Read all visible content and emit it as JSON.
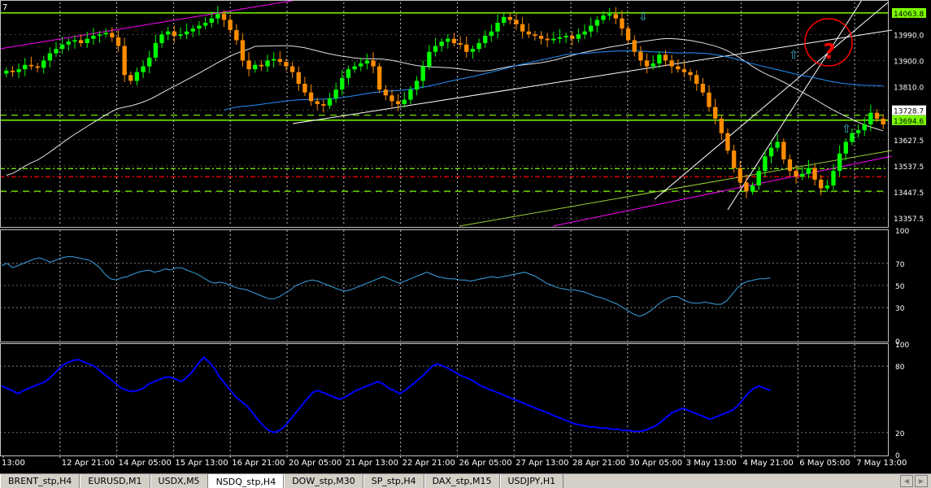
{
  "window": {
    "symbol_tabs": [
      {
        "label": "BRENT_stp,H4"
      },
      {
        "label": "EURUSD,M1"
      },
      {
        "label": "USDX,M5"
      },
      {
        "label": "NSDQ_stp,H4",
        "active": true
      },
      {
        "label": "DOW_stp,M30"
      },
      {
        "label": "SP_stp,H4"
      },
      {
        "label": "DAX_stp,M15"
      },
      {
        "label": "USDJPY,H1"
      }
    ]
  },
  "colors": {
    "background": "#000000",
    "bull_candle": "#00ff00",
    "bear_candle": "#ff8c00",
    "axis_text": "#ffffff",
    "grid": "#c0c0c0",
    "rsi_line": "#3aa0e0",
    "stoch_line": "#0000ff",
    "level_line": "#7cfc00",
    "trend_line_magenta": "#ff00ff",
    "ma_white": "#e0e0e0",
    "ma_blue": "#1e90ff",
    "marker_circle": "#ff0000"
  },
  "chart_data": [
    {
      "type": "candlestick",
      "panel": "price",
      "symbol": "NSDQ_stp",
      "timeframe": "H4",
      "ylim": [
        13330,
        14100
      ],
      "y_ticks": [
        "14063.8",
        "13990.0",
        "13900.0",
        "13810.0",
        "13728.7",
        "13694.6",
        "13627.5",
        "13537.5",
        "13447.5",
        "13357.5"
      ],
      "price_labels": [
        {
          "value": "14063.8",
          "boxed": true
        },
        {
          "value": "13728.7",
          "boxed": true,
          "style": "white"
        },
        {
          "value": "13694.6",
          "boxed": true
        }
      ],
      "horizontal_levels": [
        {
          "value": 14063.8,
          "style": "solid",
          "color": "#7cfc00"
        },
        {
          "value": 13712.0,
          "style": "dashed",
          "color": "#7cfc00"
        },
        {
          "value": 13694.6,
          "style": "solid",
          "color": "#7cfc00"
        },
        {
          "value": 13528.0,
          "style": "dashdot",
          "color": "#7cfc00"
        },
        {
          "value": 13500.0,
          "style": "dashdot",
          "color": "#ff0000"
        },
        {
          "value": 13450.0,
          "style": "dashed",
          "color": "#7cfc00"
        }
      ],
      "x_ticks": [
        "13:00",
        "12 Apr 21:00",
        "14 Apr 05:00",
        "15 Apr 13:00",
        "16 Apr 21:00",
        "20 Apr 05:00",
        "21 Apr 13:00",
        "22 Apr 21:00",
        "26 Apr 05:00",
        "27 Apr 13:00",
        "28 Apr 21:00",
        "30 Apr 05:00",
        "3 May 13:00",
        "4 May 21:00",
        "6 May 05:00",
        "7 May 13:00"
      ],
      "close_series": [
        13865,
        13860,
        13870,
        13885,
        13880,
        13875,
        13900,
        13925,
        13940,
        13955,
        13965,
        13970,
        13960,
        13975,
        13985,
        13990,
        13995,
        13980,
        13950,
        13850,
        13830,
        13860,
        13880,
        13910,
        13960,
        13990,
        14000,
        13985,
        13990,
        14000,
        14010,
        14020,
        14030,
        14045,
        14060,
        14040,
        14005,
        13970,
        13900,
        13870,
        13885,
        13880,
        13900,
        13905,
        13895,
        13880,
        13860,
        13820,
        13790,
        13760,
        13750,
        13745,
        13770,
        13800,
        13840,
        13870,
        13880,
        13890,
        13900,
        13880,
        13800,
        13780,
        13760,
        13750,
        13765,
        13800,
        13830,
        13880,
        13930,
        13950,
        13965,
        13975,
        13960,
        13955,
        13930,
        13940,
        13960,
        13985,
        14000,
        14030,
        14050,
        14040,
        14025,
        14000,
        13990,
        13985,
        13975,
        13970,
        13975,
        13980,
        13985,
        13975,
        13990,
        14000,
        14020,
        14040,
        14055,
        14060,
        14045,
        14010,
        13970,
        13930,
        13900,
        13880,
        13890,
        13920,
        13900,
        13880,
        13870,
        13860,
        13850,
        13820,
        13790,
        13740,
        13700,
        13650,
        13590,
        13530,
        13480,
        13450,
        13470,
        13520,
        13570,
        13600,
        13620,
        13560,
        13520,
        13500,
        13510,
        13530,
        13490,
        13460,
        13470,
        13520,
        13580,
        13620,
        13650,
        13660,
        13680,
        13720,
        13700,
        13680
      ],
      "indicators": [
        {
          "name": "",
          "kind": "moving_average",
          "color": "#e0e0e0"
        },
        {
          "name": "",
          "kind": "moving_average",
          "color": "#1e90ff"
        }
      ],
      "markers": [
        {
          "kind": "question",
          "text": "?"
        }
      ]
    },
    {
      "type": "line",
      "panel": "rsi",
      "ylim": [
        0,
        100
      ],
      "y_ticks": [
        "100",
        "70",
        "50",
        "30",
        "0"
      ],
      "levels": [
        70,
        50,
        30
      ],
      "values": [
        68,
        70,
        66,
        68,
        70,
        72,
        74,
        75,
        73,
        71,
        73,
        75,
        76,
        76,
        75,
        74,
        73,
        70,
        66,
        60,
        56,
        55,
        57,
        58,
        60,
        62,
        63,
        64,
        62,
        63,
        65,
        64,
        66,
        66,
        64,
        62,
        60,
        57,
        54,
        52,
        53,
        52,
        50,
        48,
        47,
        46,
        44,
        42,
        40,
        38,
        38,
        40,
        43,
        46,
        50,
        52,
        54,
        55,
        54,
        52,
        50,
        48,
        46,
        45,
        46,
        48,
        50,
        52,
        54,
        56,
        58,
        56,
        54,
        52,
        54,
        56,
        58,
        60,
        62,
        60,
        58,
        57,
        56,
        56,
        55,
        55,
        54,
        55,
        56,
        57,
        58,
        57,
        58,
        59,
        60,
        61,
        62,
        60,
        58,
        55,
        52,
        50,
        48,
        47,
        46,
        46,
        45,
        44,
        42,
        40,
        39,
        37,
        35,
        33,
        30,
        27,
        24,
        22,
        24,
        27,
        31,
        35,
        38,
        40,
        40,
        37,
        35,
        34,
        34,
        35,
        34,
        33,
        33,
        36,
        42,
        48,
        52,
        54,
        55,
        56,
        56,
        57
      ]
    },
    {
      "type": "line",
      "panel": "stochastic",
      "ylim": [
        0,
        100
      ],
      "y_ticks": [
        "100",
        "80",
        "20",
        "0"
      ],
      "levels": [
        80,
        20
      ],
      "values": [
        62,
        60,
        58,
        55,
        58,
        60,
        62,
        64,
        66,
        70,
        75,
        80,
        83,
        85,
        86,
        84,
        82,
        80,
        76,
        72,
        68,
        64,
        60,
        58,
        57,
        58,
        60,
        64,
        66,
        68,
        70,
        70,
        68,
        66,
        70,
        75,
        82,
        88,
        84,
        78,
        70,
        64,
        58,
        52,
        48,
        44,
        38,
        32,
        26,
        22,
        20,
        22,
        26,
        32,
        38,
        44,
        50,
        56,
        58,
        56,
        54,
        52,
        50,
        52,
        55,
        58,
        60,
        62,
        64,
        66,
        64,
        60,
        58,
        55,
        58,
        62,
        66,
        70,
        75,
        80,
        82,
        80,
        78,
        75,
        72,
        70,
        68,
        65,
        62,
        60,
        58,
        56,
        54,
        52,
        50,
        48,
        46,
        44,
        42,
        40,
        38,
        36,
        34,
        32,
        30,
        28,
        27,
        26,
        25,
        25,
        24,
        24,
        23,
        23,
        22,
        22,
        21,
        21,
        22,
        24,
        26,
        30,
        34,
        38,
        40,
        42,
        40,
        38,
        36,
        34,
        32,
        34,
        36,
        38,
        40,
        44,
        50,
        56,
        60,
        62,
        60,
        58
      ]
    }
  ]
}
